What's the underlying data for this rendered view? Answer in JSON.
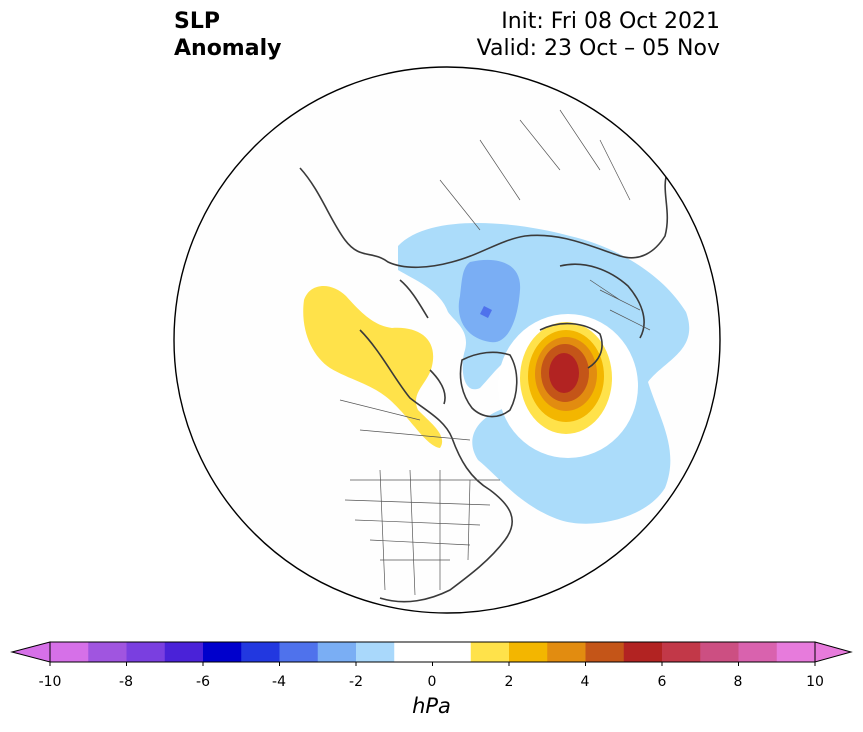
{
  "header": {
    "title_line1": "SLP",
    "title_line2": "Anomaly",
    "init": "Init: Fri 08 Oct 2021",
    "valid": "Valid: 23 Oct – 05 Nov"
  },
  "colorbar": {
    "unit": "hPa",
    "min": -10,
    "max": 10,
    "step": 1,
    "tick_labels": [
      "-10",
      "-8",
      "-6",
      "-4",
      "-2",
      "0",
      "2",
      "4",
      "6",
      "8",
      "10"
    ],
    "colors": [
      "#d670e8",
      "#a055e0",
      "#7a3fe0",
      "#4a22d8",
      "#0000cc",
      "#2238e0",
      "#4f72ec",
      "#7aaef4",
      "#a9d8fb",
      "#ffffff",
      "#ffffff",
      "#ffe24a",
      "#f3b600",
      "#e28c10",
      "#c45518",
      "#b22322",
      "#c23848",
      "#cc4f82",
      "#d962ae",
      "#e77bdc"
    ]
  },
  "map": {
    "projection": "north-polar-stereographic",
    "features": {
      "negative_anomaly_arctic": "light blue (-1 to -3 hPa) over Siberia, Arctic Ocean and Greenland, core near -3 hPa north of Scandinavia",
      "positive_anomaly_atlantic": "yellow to dark red (+1 to +6 hPa) center over northern Europe / Norwegian Sea",
      "positive_anomaly_pacific": "yellow (+1 to +2 hPa) over Alaska and northwest Canada"
    }
  }
}
